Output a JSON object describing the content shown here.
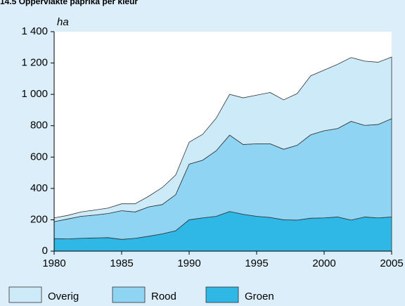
{
  "chart_data": {
    "type": "area",
    "stacked": true,
    "title": "14.5 Oppervlakte paprika per kleur",
    "y_label": "ha",
    "x": [
      1980,
      1981,
      1982,
      1983,
      1984,
      1985,
      1986,
      1987,
      1988,
      1989,
      1990,
      1991,
      1992,
      1993,
      1994,
      1995,
      1996,
      1997,
      1998,
      1999,
      2000,
      2001,
      2002,
      2003,
      2004,
      2005
    ],
    "series": [
      {
        "name": "Overig",
        "color": "#cdeaf8",
        "values": [
          24,
          23,
          28,
          32,
          35,
          44,
          52,
          68,
          108,
          125,
          140,
          165,
          208,
          260,
          298,
          310,
          327,
          315,
          330,
          376,
          387,
          410,
          407,
          410,
          397,
          393
        ]
      },
      {
        "name": "Rood",
        "color": "#8fd4f3",
        "values": [
          108,
          127,
          140,
          146,
          154,
          183,
          168,
          187,
          187,
          230,
          355,
          368,
          418,
          487,
          445,
          463,
          470,
          450,
          477,
          532,
          556,
          564,
          630,
          584,
          596,
          627
        ]
      },
      {
        "name": "Groen",
        "color": "#2fb7e5",
        "values": [
          80,
          78,
          82,
          84,
          86,
          75,
          82,
          95,
          110,
          130,
          200,
          212,
          222,
          253,
          235,
          222,
          215,
          200,
          198,
          210,
          212,
          218,
          198,
          218,
          212,
          218
        ]
      }
    ],
    "xlim": [
      1980,
      2005
    ],
    "xticks": [
      1980,
      1985,
      1990,
      1995,
      2000,
      2005
    ],
    "ylim": [
      0,
      1400
    ],
    "yticks": [
      0,
      200,
      400,
      600,
      800,
      {
        "value": 1000,
        "label": "1 000"
      },
      {
        "value": 1200,
        "label": "1 200"
      },
      {
        "value": 1400,
        "label": "1 400"
      }
    ]
  }
}
